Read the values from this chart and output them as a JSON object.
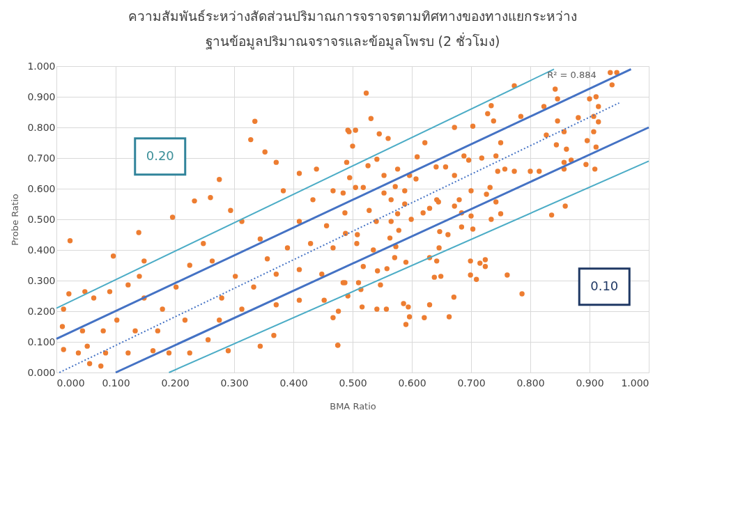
{
  "chart_data": {
    "type": "scatter",
    "title": [
      "ความสัมพันธ์ระหว่างสัดส่วนปริมาณการจราจรตามทิศทางของทางแยกระหว่าง",
      "ฐานข้อมูลปริมาณจราจรและข้อมูลโพรบ (2 ชั่วโมง)"
    ],
    "xlabel": "BMA Ratio",
    "ylabel": "Probe Ratio",
    "xlim": [
      0,
      1
    ],
    "ylim": [
      0,
      1
    ],
    "grid": true,
    "xticks": [
      {
        "value": 0,
        "label": "0.000"
      },
      {
        "value": 0.1,
        "label": "0.100"
      },
      {
        "value": 0.2,
        "label": "0.200"
      },
      {
        "value": 0.3,
        "label": "0.300"
      },
      {
        "value": 0.4,
        "label": "0.400"
      },
      {
        "value": 0.5,
        "label": "0.500"
      },
      {
        "value": 0.6,
        "label": "0.600"
      },
      {
        "value": 0.7,
        "label": "0.700"
      },
      {
        "value": 0.8,
        "label": "0.800"
      },
      {
        "value": 0.9,
        "label": "0.900"
      },
      {
        "value": 1,
        "label": "1.000"
      }
    ],
    "yticks": [
      {
        "value": 0,
        "label": "0.000"
      },
      {
        "value": 0.1,
        "label": "0.100"
      },
      {
        "value": 0.2,
        "label": "0.200"
      },
      {
        "value": 0.3,
        "label": "0.300"
      },
      {
        "value": 0.4,
        "label": "0.400"
      },
      {
        "value": 0.5,
        "label": "0.500"
      },
      {
        "value": 0.6,
        "label": "0.600"
      },
      {
        "value": 0.7,
        "label": "0.700"
      },
      {
        "value": 0.8,
        "label": "0.800"
      },
      {
        "value": 0.9,
        "label": "0.900"
      },
      {
        "value": 1,
        "label": "1.000"
      }
    ],
    "annotations": [
      "R² = 0.884",
      "0.20",
      "0.10"
    ],
    "series": [
      {
        "type": "scatter",
        "marker": "circle",
        "color": "#ed7d31",
        "x": [
          0.023,
          0.335,
          0.328,
          0.352,
          0.371,
          0.439,
          0.275,
          0.26,
          0.233,
          0.196,
          0.139,
          0.096,
          0.021,
          0.012,
          0.01,
          0.012,
          0.037,
          0.056,
          0.075,
          0.052,
          0.079,
          0.102,
          0.063,
          0.09,
          0.121,
          0.14,
          0.148,
          0.163,
          0.19,
          0.121,
          0.171,
          0.179,
          0.202,
          0.225,
          0.248,
          0.294,
          0.313,
          0.344,
          0.225,
          0.256,
          0.29,
          0.344,
          0.367,
          0.475,
          0.467,
          0.452,
          0.41,
          0.371,
          0.313,
          0.279,
          0.302,
          0.333,
          0.371,
          0.41,
          0.448,
          0.487,
          0.467,
          0.429,
          0.39,
          0.356,
          0.41,
          0.456,
          0.487,
          0.467,
          0.433,
          0.383,
          0.41,
          0.49,
          0.494,
          0.263,
          0.275,
          0.217,
          0.148,
          0.133,
          0.083,
          0.044,
          0.048,
          0.523,
          0.531,
          0.492,
          0.505,
          0.5,
          0.545,
          0.56,
          0.541,
          0.526,
          0.576,
          0.609,
          0.622,
          0.672,
          0.703,
          0.734,
          0.728,
          0.773,
          0.738,
          0.75,
          0.742,
          0.784,
          0.823,
          0.842,
          0.846,
          0.9,
          0.911,
          0.915,
          0.938,
          0.935,
          0.946,
          0.907,
          0.915,
          0.881,
          0.857,
          0.846,
          0.827,
          0.844,
          0.861,
          0.896,
          0.907,
          0.911,
          0.894,
          0.909,
          0.857,
          0.869,
          0.815,
          0.8,
          0.773,
          0.757,
          0.745,
          0.718,
          0.696,
          0.688,
          0.672,
          0.657,
          0.641,
          0.68,
          0.7,
          0.726,
          0.742,
          0.732,
          0.734,
          0.75,
          0.7,
          0.684,
          0.672,
          0.645,
          0.63,
          0.619,
          0.642,
          0.588,
          0.576,
          0.565,
          0.553,
          0.572,
          0.588,
          0.607,
          0.596,
          0.553,
          0.518,
          0.505,
          0.484,
          0.495,
          0.528,
          0.54,
          0.565,
          0.599,
          0.488,
          0.507,
          0.508,
          0.563,
          0.578,
          0.535,
          0.573,
          0.571,
          0.59,
          0.542,
          0.558,
          0.518,
          0.51,
          0.484,
          0.492,
          0.514,
          0.547,
          0.516,
          0.541,
          0.557,
          0.476,
          0.475,
          0.586,
          0.594,
          0.59,
          0.596,
          0.621,
          0.63,
          0.663,
          0.671,
          0.649,
          0.638,
          0.63,
          0.646,
          0.642,
          0.647,
          0.661,
          0.684,
          0.703,
          0.699,
          0.715,
          0.724,
          0.724,
          0.699,
          0.709,
          0.761,
          0.786,
          0.836,
          0.859,
          0.857
        ],
        "values": [
          0.43,
          0.82,
          0.76,
          0.72,
          0.686,
          0.664,
          0.63,
          0.571,
          0.56,
          0.507,
          0.457,
          0.38,
          0.257,
          0.207,
          0.15,
          0.075,
          0.064,
          0.029,
          0.021,
          0.086,
          0.136,
          0.171,
          0.243,
          0.264,
          0.286,
          0.314,
          0.364,
          0.071,
          0.064,
          0.064,
          0.136,
          0.207,
          0.279,
          0.35,
          0.421,
          0.529,
          0.493,
          0.436,
          0.064,
          0.107,
          0.071,
          0.086,
          0.121,
          0.089,
          0.179,
          0.236,
          0.236,
          0.221,
          0.207,
          0.243,
          0.314,
          0.279,
          0.321,
          0.336,
          0.321,
          0.293,
          0.407,
          0.421,
          0.407,
          0.371,
          0.493,
          0.479,
          0.521,
          0.593,
          0.564,
          0.593,
          0.65,
          0.686,
          0.786,
          0.364,
          0.171,
          0.171,
          0.243,
          0.136,
          0.064,
          0.136,
          0.264,
          0.912,
          0.829,
          0.791,
          0.791,
          0.739,
          0.779,
          0.764,
          0.696,
          0.675,
          0.664,
          0.704,
          0.75,
          0.8,
          0.804,
          0.871,
          0.845,
          0.936,
          0.821,
          0.75,
          0.707,
          0.836,
          0.868,
          0.925,
          0.893,
          0.893,
          0.9,
          0.868,
          0.939,
          0.979,
          0.979,
          0.836,
          0.818,
          0.832,
          0.786,
          0.821,
          0.775,
          0.743,
          0.729,
          0.757,
          0.786,
          0.736,
          0.679,
          0.664,
          0.686,
          0.693,
          0.657,
          0.657,
          0.657,
          0.664,
          0.657,
          0.7,
          0.693,
          0.707,
          0.643,
          0.671,
          0.671,
          0.564,
          0.593,
          0.582,
          0.557,
          0.604,
          0.5,
          0.518,
          0.511,
          0.521,
          0.543,
          0.557,
          0.536,
          0.521,
          0.564,
          0.55,
          0.518,
          0.564,
          0.586,
          0.607,
          0.593,
          0.632,
          0.643,
          0.643,
          0.604,
          0.604,
          0.586,
          0.636,
          0.529,
          0.493,
          0.493,
          0.5,
          0.454,
          0.421,
          0.45,
          0.439,
          0.464,
          0.4,
          0.411,
          0.375,
          0.36,
          0.332,
          0.339,
          0.346,
          0.293,
          0.293,
          0.25,
          0.271,
          0.286,
          0.214,
          0.207,
          0.207,
          0.2,
          0.089,
          0.225,
          0.214,
          0.157,
          0.182,
          0.179,
          0.221,
          0.182,
          0.246,
          0.314,
          0.311,
          0.375,
          0.407,
          0.364,
          0.46,
          0.45,
          0.475,
          0.468,
          0.364,
          0.357,
          0.368,
          0.346,
          0.318,
          0.304,
          0.318,
          0.257,
          0.514,
          0.543,
          0.664
        ]
      },
      {
        "type": "line",
        "color": "#4bacc6",
        "line_style": "solid",
        "x": [
          0,
          0.84
        ],
        "values": [
          0.21,
          0.99
        ]
      },
      {
        "type": "line",
        "color": "#4472c4",
        "line_style": "solid",
        "x": [
          0,
          0.97
        ],
        "values": [
          0.11,
          0.99
        ]
      },
      {
        "type": "line",
        "color": "#4472c4",
        "line_style": "dotted",
        "x": [
          0.005,
          0.95
        ],
        "values": [
          0.0,
          0.88
        ]
      },
      {
        "type": "line",
        "color": "#4472c4",
        "line_style": "solid",
        "x": [
          0.1,
          1.0
        ],
        "values": [
          0.0,
          0.8
        ]
      },
      {
        "type": "line",
        "color": "#4bacc6",
        "line_style": "solid",
        "x": [
          0.19,
          1.0
        ],
        "values": [
          0.0,
          0.69
        ]
      }
    ]
  }
}
